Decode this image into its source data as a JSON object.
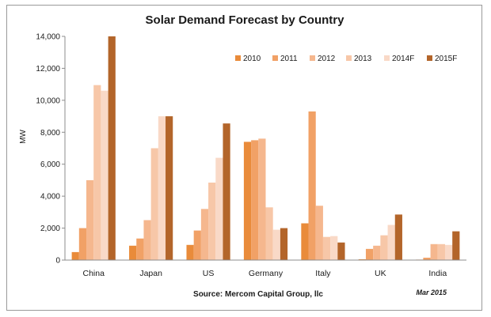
{
  "chart_data": {
    "type": "bar",
    "title": "Solar Demand Forecast by Country",
    "ylabel": "MW",
    "xlabel": "",
    "ylim": [
      0,
      14000
    ],
    "yticks": [
      "0",
      "2,000",
      "4,000",
      "6,000",
      "8,000",
      "10,000",
      "12,000",
      "14,000"
    ],
    "ytick_values": [
      0,
      2000,
      4000,
      6000,
      8000,
      10000,
      12000,
      14000
    ],
    "categories": [
      "China",
      "Japan",
      "US",
      "Germany",
      "Italy",
      "UK",
      "India"
    ],
    "series": [
      {
        "name": "2010",
        "color": "#e98b3a",
        "values": [
          500,
          900,
          950,
          7400,
          2300,
          50,
          30
        ]
      },
      {
        "name": "2011",
        "color": "#f1a166",
        "values": [
          2000,
          1350,
          1850,
          7500,
          9300,
          700,
          150
        ]
      },
      {
        "name": "2012",
        "color": "#f5b78e",
        "values": [
          5000,
          2500,
          3200,
          7600,
          3400,
          900,
          1000
        ]
      },
      {
        "name": "2013",
        "color": "#f7c7a8",
        "values": [
          10950,
          7000,
          4850,
          3300,
          1450,
          1550,
          1000
        ]
      },
      {
        "name": "2014F",
        "color": "#f9d9c7",
        "values": [
          10600,
          9000,
          6400,
          1900,
          1500,
          2200,
          950
        ]
      },
      {
        "name": "2015F",
        "color": "#b3652a",
        "values": [
          14000,
          9000,
          8550,
          2000,
          1100,
          2850,
          1800
        ]
      }
    ],
    "legend_position": "top-right",
    "grid": false,
    "source": "Source: Mercom Capital Group, llc",
    "date": "Mar 2015"
  }
}
